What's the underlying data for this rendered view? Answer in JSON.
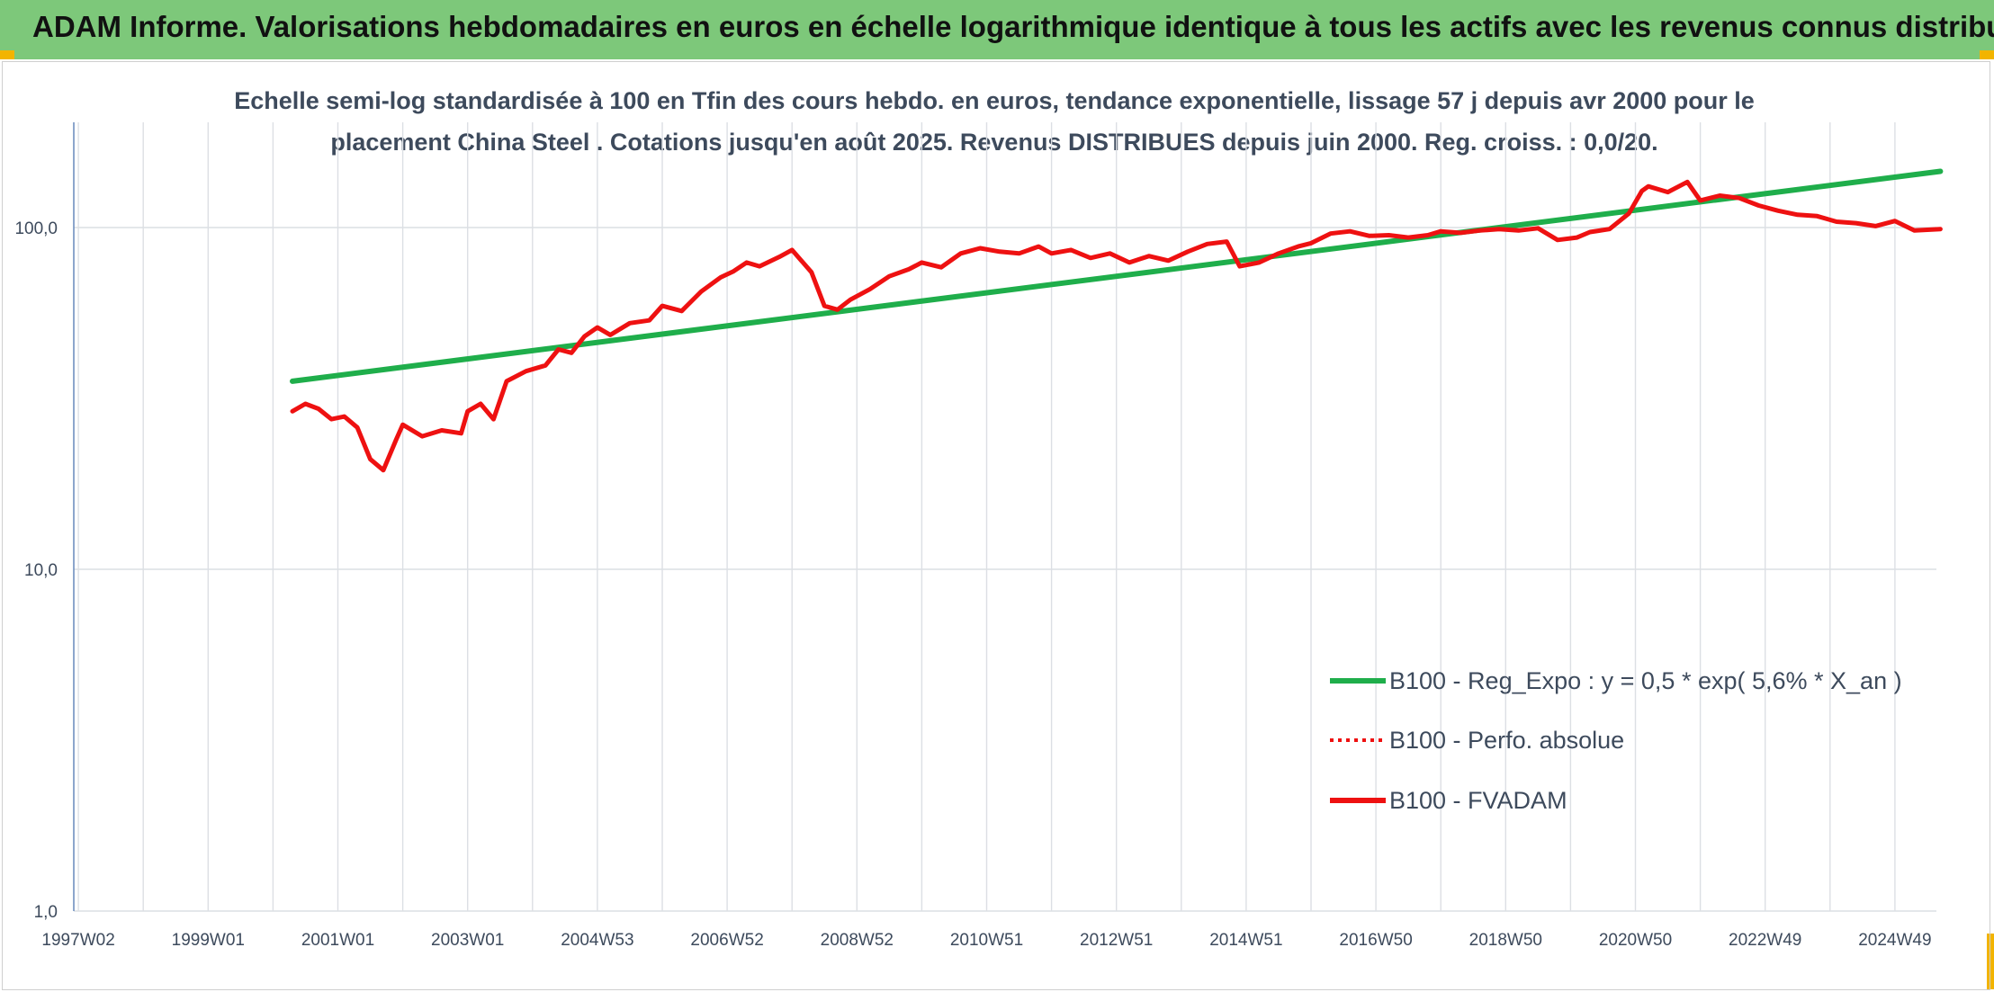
{
  "header": {
    "title": "ADAM Informe. Valorisations hebdomadaires en euros en échelle logarithmique identique à tous les actifs avec les revenus connus distribués"
  },
  "colors": {
    "banner": "#7dc87a",
    "corner_accent": "#f2b400",
    "regression": "#1fae4b",
    "fvadam": "#ee1111",
    "perf_absolue": "#ee1111",
    "grid": "#dcdfe4",
    "text": "#3d4a5c"
  },
  "chart_data": {
    "type": "line",
    "subtitle_line1": "Echelle semi-log standardisée à 100 en Tfin des cours hebdo. en euros, tendance exponentielle, lissage 57 j depuis avr 2000 pour le",
    "subtitle_line2": "placement China Steel . Cotations jusqu'en août 2025. Revenus DISTRIBUES depuis juin 2000. Reg. croiss. : 0,0/20.",
    "y_scale": "log",
    "ylim": [
      1,
      200
    ],
    "y_ticks": [
      "1,0",
      "10,0",
      "100,0"
    ],
    "y_tick_values": [
      1,
      10,
      100
    ],
    "x_tick_labels": [
      "1997W02",
      "1999W01",
      "2001W01",
      "2003W01",
      "2004W53",
      "2006W52",
      "2008W52",
      "2010W51",
      "2012W51",
      "2014W51",
      "2016W50",
      "2018W50",
      "2020W50",
      "2022W49",
      "2024W49"
    ],
    "x_tick_years": [
      1997.0,
      1999.0,
      2001.0,
      2003.0,
      2005.0,
      2007.0,
      2009.0,
      2011.0,
      2013.0,
      2015.0,
      2017.0,
      2019.0,
      2021.0,
      2023.0,
      2025.0
    ],
    "xlim": [
      1996.0,
      2025.7
    ],
    "grid": true,
    "legend_position": "bottom-right",
    "series": [
      {
        "name": "B100 - Reg_Expo : y = 0,5 * exp( 5,6% *  X_an )",
        "style": "solid-green",
        "x": [
          2000.3,
          2025.7
        ],
        "y": [
          35.5,
          146.0
        ]
      },
      {
        "name": "B100 - Perfo. absolue",
        "style": "dotted-red",
        "x": [],
        "y": []
      },
      {
        "name": "B100 - FVADAM",
        "style": "solid-red",
        "x": [
          2000.3,
          2000.5,
          2000.7,
          2000.9,
          2001.1,
          2001.3,
          2001.5,
          2001.7,
          2001.9,
          2002.0,
          2002.3,
          2002.6,
          2002.9,
          2003.0,
          2003.2,
          2003.4,
          2003.6,
          2003.9,
          2004.2,
          2004.4,
          2004.6,
          2004.8,
          2005.0,
          2005.2,
          2005.5,
          2005.8,
          2006.0,
          2006.3,
          2006.6,
          2006.9,
          2007.1,
          2007.3,
          2007.5,
          2007.8,
          2008.0,
          2008.3,
          2008.5,
          2008.7,
          2008.9,
          2009.2,
          2009.5,
          2009.8,
          2010.0,
          2010.3,
          2010.6,
          2010.9,
          2011.2,
          2011.5,
          2011.8,
          2012.0,
          2012.3,
          2012.6,
          2012.9,
          2013.2,
          2013.5,
          2013.8,
          2014.1,
          2014.4,
          2014.7,
          2014.9,
          2015.2,
          2015.5,
          2015.8,
          2016.0,
          2016.3,
          2016.6,
          2016.9,
          2017.2,
          2017.5,
          2017.8,
          2018.0,
          2018.3,
          2018.6,
          2018.9,
          2019.2,
          2019.5,
          2019.8,
          2020.1,
          2020.3,
          2020.6,
          2020.9,
          2021.1,
          2021.2,
          2021.5,
          2021.8,
          2022.0,
          2022.3,
          2022.6,
          2022.9,
          2023.2,
          2023.5,
          2023.8,
          2024.1,
          2024.4,
          2024.7,
          2025.0,
          2025.3,
          2025.7
        ],
        "y": [
          29,
          30.5,
          29.5,
          27.5,
          28,
          26,
          21,
          19.5,
          24,
          26.5,
          24.5,
          25.5,
          25,
          29,
          30.5,
          27.5,
          35.5,
          38,
          39.5,
          44,
          43,
          48,
          51,
          48.5,
          52.5,
          53.5,
          59,
          57,
          65,
          71.5,
          74.5,
          79,
          77,
          82,
          86,
          74,
          59,
          57.5,
          61.5,
          66,
          72,
          75.5,
          79,
          76.5,
          84,
          87,
          85,
          84,
          88,
          84,
          86,
          81.5,
          84,
          79,
          82.5,
          80,
          85,
          89.5,
          91,
          77,
          79,
          84,
          88,
          90,
          96,
          97.5,
          94.5,
          95,
          93.5,
          95,
          97.5,
          96.5,
          98,
          99,
          98,
          99.5,
          92,
          93.5,
          97,
          99,
          110,
          128,
          132,
          127,
          136,
          120,
          124,
          122,
          116,
          112,
          109,
          108,
          104,
          103,
          101,
          104.5,
          98,
          99
        ]
      }
    ]
  }
}
